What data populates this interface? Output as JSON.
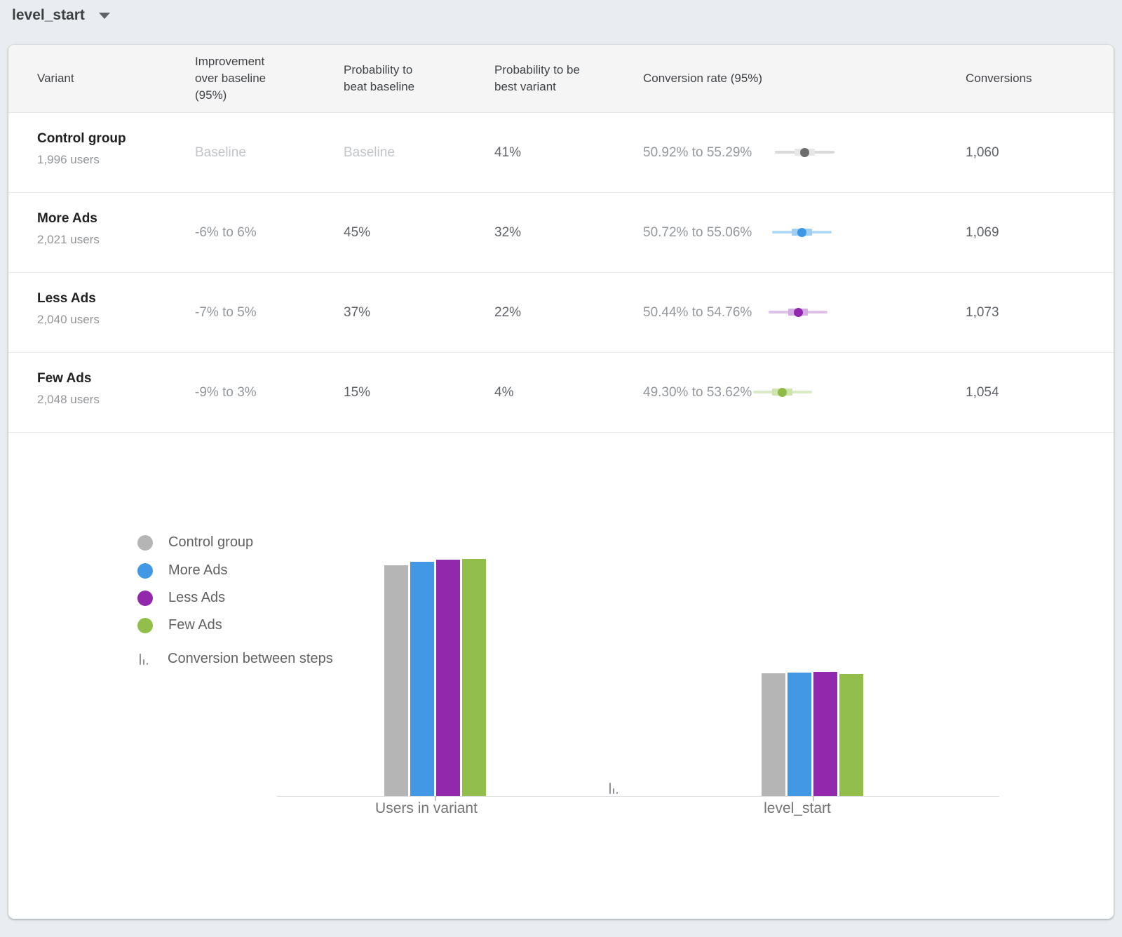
{
  "toolbar": {
    "metric_selector": {
      "value": "level_start"
    }
  },
  "table": {
    "columns": [
      "Variant",
      "Improvement over baseline (95%)",
      "Probability to beat baseline",
      "Probability to be best variant",
      "Conversion rate (95%)",
      "Conversions"
    ],
    "rows": [
      {
        "variant": "Control group",
        "users": "1,996 users",
        "improvement": "Baseline",
        "improvement_is_baseline": true,
        "prob_beat": "Baseline",
        "prob_beat_is_baseline": true,
        "prob_best": "41%",
        "conv_rate": "50.92% to 55.29%",
        "ci_low": 50.92,
        "ci_high": 55.29,
        "conversions": "1,060",
        "colors": {
          "line": "#dadada",
          "band": "#e7e7e7",
          "dot": "#6d6d6d"
        }
      },
      {
        "variant": "More Ads",
        "users": "2,021 users",
        "improvement": "-6% to 6%",
        "improvement_is_baseline": false,
        "prob_beat": "45%",
        "prob_beat_is_baseline": false,
        "prob_best": "32%",
        "conv_rate": "50.72% to 55.06%",
        "ci_low": 50.72,
        "ci_high": 55.06,
        "conversions": "1,069",
        "colors": {
          "line": "#b3daf7",
          "band": "#9fcff3",
          "dot": "#3e96e6"
        }
      },
      {
        "variant": "Less Ads",
        "users": "2,040 users",
        "improvement": "-7% to 5%",
        "improvement_is_baseline": false,
        "prob_beat": "37%",
        "prob_beat_is_baseline": false,
        "prob_best": "22%",
        "conv_rate": "50.44% to 54.76%",
        "ci_low": 50.44,
        "ci_high": 54.76,
        "conversions": "1,073",
        "colors": {
          "line": "#dfc2ea",
          "band": "#d4ace2",
          "dot": "#9127ad"
        }
      },
      {
        "variant": "Few Ads",
        "users": "2,048 users",
        "improvement": "-9% to 3%",
        "improvement_is_baseline": false,
        "prob_beat": "15%",
        "prob_beat_is_baseline": false,
        "prob_best": "4%",
        "conv_rate": "49.30% to 53.62%",
        "ci_low": 49.3,
        "ci_high": 53.62,
        "conversions": "1,054",
        "colors": {
          "line": "#dcebc7",
          "band": "#cfe3ad",
          "dot": "#8fbc49"
        }
      }
    ]
  },
  "chart_data": {
    "type": "bar",
    "categories": [
      "Users in variant",
      "level_start"
    ],
    "series": [
      {
        "name": "Control group",
        "color": "#b5b5b5",
        "values": [
          1996,
          1060
        ]
      },
      {
        "name": "More Ads",
        "color": "#4298e5",
        "values": [
          2021,
          1069
        ]
      },
      {
        "name": "Less Ads",
        "color": "#9229ac",
        "values": [
          2040,
          1073
        ]
      },
      {
        "name": "Few Ads",
        "color": "#92bf4c",
        "values": [
          2048,
          1054
        ]
      }
    ],
    "extra_legend_label": "Conversion between steps",
    "ylim": [
      0,
      2100
    ],
    "grid": false,
    "legend_position": "left"
  }
}
